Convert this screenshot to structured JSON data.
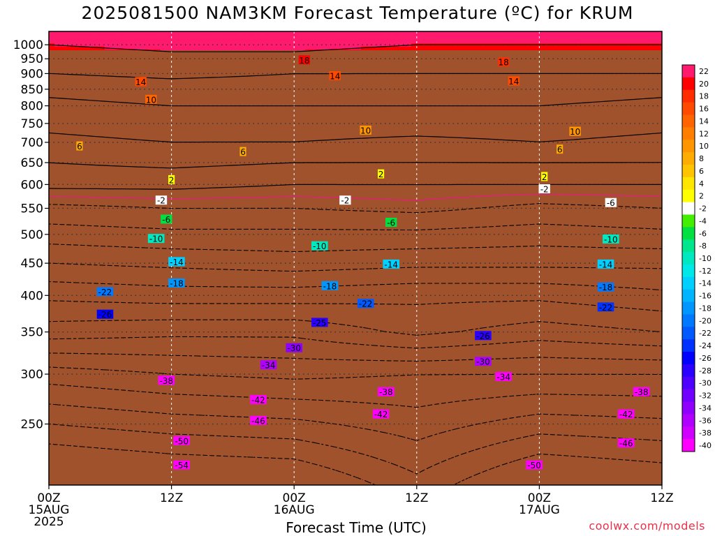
{
  "chart_data": {
    "type": "heatmap",
    "title": "2025081500 NAM3KM Forecast Temperature (ºC) for KRUM",
    "xlabel": "Forecast Time (UTC)",
    "ylabel": "",
    "credit": "coolwx.com/models",
    "x_ticks": [
      {
        "hours": 0,
        "lines": [
          "00Z",
          "15AUG",
          "2025"
        ]
      },
      {
        "hours": 12,
        "lines": [
          "12Z"
        ]
      },
      {
        "hours": 24,
        "lines": [
          "00Z",
          "16AUG"
        ]
      },
      {
        "hours": 36,
        "lines": [
          "12Z"
        ]
      },
      {
        "hours": 48,
        "lines": [
          "00Z",
          "17AUG"
        ]
      },
      {
        "hours": 60,
        "lines": [
          "12Z"
        ]
      }
    ],
    "xlim_hours": [
      0,
      60
    ],
    "y_axis": "pressure (hPa), log scale, inverted",
    "ylim_hpa": [
      1050,
      200
    ],
    "y_ticks": [
      250,
      300,
      350,
      400,
      450,
      500,
      550,
      600,
      650,
      700,
      750,
      800,
      850,
      900,
      950,
      1000
    ],
    "surface_pressure_hpa": 980,
    "grid": true,
    "colorbar": {
      "labels": [
        "22",
        "20",
        "18",
        "16",
        "14",
        "12",
        "10",
        "8",
        "6",
        "4",
        "2",
        "-2",
        "-4",
        "-6",
        "-8",
        "-10",
        "-12",
        "-14",
        "-16",
        "-18",
        "-20",
        "-22",
        "-24",
        "-26",
        "-28",
        "-30",
        "-32",
        "-34",
        "-36",
        "-38",
        "-40"
      ],
      "position": "right"
    },
    "profile_levels_hpa": [
      250,
      300,
      350,
      400,
      450,
      500,
      550,
      600,
      650,
      700,
      750,
      800,
      850,
      900,
      950,
      1000
    ],
    "temperature_profile_c": [
      {
        "hours": 0,
        "temps": [
          -50,
          -40,
          -28,
          -21,
          -14,
          -8,
          -3,
          3,
          6,
          9,
          11,
          13,
          15,
          18,
          20,
          22
        ]
      },
      {
        "hours": 12,
        "temps": [
          -48,
          -38,
          -29,
          -20,
          -13,
          -7,
          -2,
          3,
          7,
          10,
          12,
          14,
          16,
          19,
          21,
          23
        ]
      },
      {
        "hours": 24,
        "temps": [
          -47,
          -37,
          -29,
          -20,
          -12,
          -7,
          -2,
          2,
          6,
          10,
          12,
          14,
          16,
          18,
          21,
          23
        ]
      },
      {
        "hours": 36,
        "temps": [
          -44,
          -38,
          -25,
          -21,
          -13,
          -7,
          -1,
          2,
          6,
          9,
          12,
          14,
          16,
          18,
          20,
          22
        ]
      },
      {
        "hours": 48,
        "temps": [
          -48,
          -38,
          -28,
          -21,
          -13,
          -8,
          -3,
          2,
          6,
          10,
          12,
          14,
          16,
          18,
          20,
          22
        ]
      },
      {
        "hours": 60,
        "temps": [
          -47,
          -38,
          -26,
          -19,
          -13,
          -7,
          -2,
          2,
          6,
          9,
          11,
          13,
          15,
          18,
          20,
          22
        ]
      }
    ],
    "contour_labels": [
      {
        "value": "-54",
        "hours": 13.0,
        "hpa": 215
      },
      {
        "value": "-50",
        "hours": 47.5,
        "hpa": 215
      },
      {
        "value": "-50",
        "hours": 13.0,
        "hpa": 235
      },
      {
        "value": "-46",
        "hours": 56.5,
        "hpa": 233
      },
      {
        "value": "-46",
        "hours": 20.5,
        "hpa": 253
      },
      {
        "value": "-42",
        "hours": 32.5,
        "hpa": 259
      },
      {
        "value": "-42",
        "hours": 56.5,
        "hpa": 259
      },
      {
        "value": "-42",
        "hours": 20.5,
        "hpa": 273
      },
      {
        "value": "-38",
        "hours": 33.0,
        "hpa": 281
      },
      {
        "value": "-38",
        "hours": 58.0,
        "hpa": 281
      },
      {
        "value": "-38",
        "hours": 11.5,
        "hpa": 293
      },
      {
        "value": "-34",
        "hours": 44.5,
        "hpa": 297
      },
      {
        "value": "-34",
        "hours": 21.5,
        "hpa": 310
      },
      {
        "value": "-30",
        "hours": 42.5,
        "hpa": 314
      },
      {
        "value": "-30",
        "hours": 24.0,
        "hpa": 330
      },
      {
        "value": "-26",
        "hours": 42.5,
        "hpa": 345
      },
      {
        "value": "-25",
        "hours": 26.5,
        "hpa": 362
      },
      {
        "value": "-26",
        "hours": 5.5,
        "hpa": 373
      },
      {
        "value": "-22",
        "hours": 54.5,
        "hpa": 383
      },
      {
        "value": "-22",
        "hours": 31.0,
        "hpa": 388
      },
      {
        "value": "-22",
        "hours": 5.5,
        "hpa": 405
      },
      {
        "value": "-18",
        "hours": 54.5,
        "hpa": 412
      },
      {
        "value": "-18",
        "hours": 27.5,
        "hpa": 414
      },
      {
        "value": "-18",
        "hours": 12.5,
        "hpa": 418
      },
      {
        "value": "-14",
        "hours": 33.5,
        "hpa": 448
      },
      {
        "value": "-14",
        "hours": 54.5,
        "hpa": 448
      },
      {
        "value": "-14",
        "hours": 12.5,
        "hpa": 452
      },
      {
        "value": "-10",
        "hours": 26.5,
        "hpa": 479
      },
      {
        "value": "-10",
        "hours": 55.0,
        "hpa": 491
      },
      {
        "value": "-10",
        "hours": 10.5,
        "hpa": 492
      },
      {
        "value": "-6",
        "hours": 33.5,
        "hpa": 522
      },
      {
        "value": "-6",
        "hours": 11.5,
        "hpa": 528
      },
      {
        "value": "-6",
        "hours": 55.0,
        "hpa": 561
      },
      {
        "value": "-2",
        "hours": 11.0,
        "hpa": 566
      },
      {
        "value": "-2",
        "hours": 29.0,
        "hpa": 566
      },
      {
        "value": "-2",
        "hours": 48.5,
        "hpa": 590
      },
      {
        "value": "2",
        "hours": 12.0,
        "hpa": 610
      },
      {
        "value": "2",
        "hours": 32.5,
        "hpa": 623
      },
      {
        "value": "2",
        "hours": 48.5,
        "hpa": 617
      },
      {
        "value": "6",
        "hours": 3.0,
        "hpa": 690
      },
      {
        "value": "6",
        "hours": 19.0,
        "hpa": 676
      },
      {
        "value": "6",
        "hours": 50.0,
        "hpa": 682
      },
      {
        "value": "10",
        "hours": 31.0,
        "hpa": 731
      },
      {
        "value": "10",
        "hours": 51.5,
        "hpa": 728
      },
      {
        "value": "10",
        "hours": 10.0,
        "hpa": 818
      },
      {
        "value": "14",
        "hours": 9.0,
        "hpa": 873
      },
      {
        "value": "14",
        "hours": 28.0,
        "hpa": 892
      },
      {
        "value": "14",
        "hours": 45.5,
        "hpa": 875
      },
      {
        "value": "18",
        "hours": 25.0,
        "hpa": 945
      },
      {
        "value": "18",
        "hours": 44.5,
        "hpa": 938
      }
    ]
  }
}
